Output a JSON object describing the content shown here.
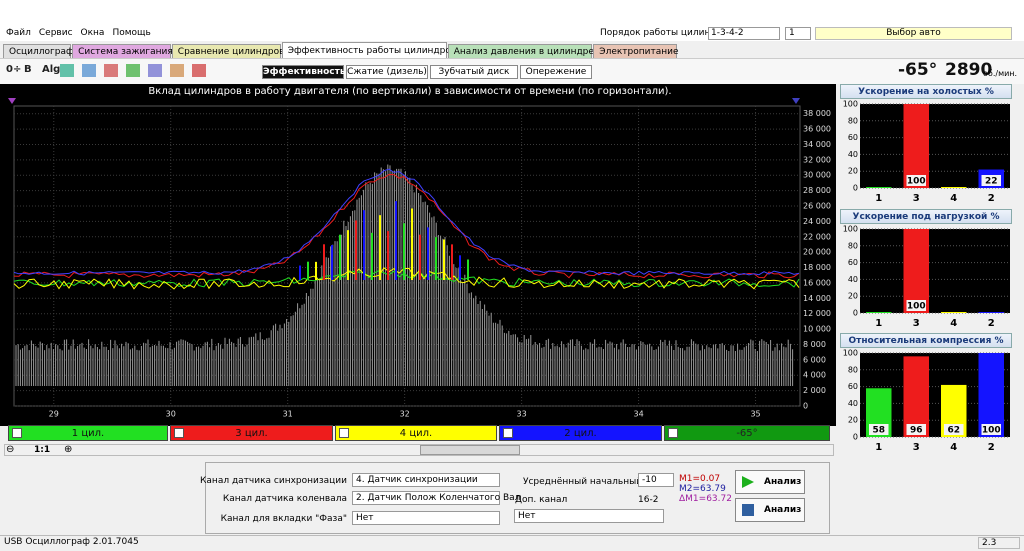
{
  "menu": [
    "Файл",
    "Сервис",
    "Окна",
    "Помощь"
  ],
  "cylinder_order": {
    "label": "Порядок работы цилиндров",
    "value": "1-3-4-2",
    "spin": "1"
  },
  "auto_select": "Выбор авто",
  "tabs": [
    "Осциллограф",
    "Система зажигания",
    "Сравнение цилиндров",
    "Эффективность работы цилиндров",
    "Анализ давления в цилиндре",
    "Электропитание"
  ],
  "toolbar": [
    "0÷",
    "B",
    "Alg"
  ],
  "subtabs": [
    "Эффективность",
    "Сжатие (дизель)",
    "Зубчатый диск",
    "Опережение"
  ],
  "readout": {
    "angle": "-65°",
    "rpm": "2890",
    "unit": "об./мин."
  },
  "main_chart": {
    "title": "Вклад цилиндров в работу двигателя (по вертикали) в зависимости от времени (по горизонтали).",
    "xlim": [
      28.66,
      35.38
    ],
    "ylim": [
      0,
      39000
    ],
    "xticks": [
      29,
      30,
      31,
      32,
      33,
      34,
      35
    ],
    "yticks": [
      0,
      {
        "value": 2000,
        "label": "2 000"
      },
      {
        "value": 4000,
        "label": "4 000"
      },
      {
        "value": 6000,
        "label": "6 000"
      },
      {
        "value": 8000,
        "label": "8 000"
      },
      {
        "value": 10000,
        "label": "10 000"
      },
      {
        "value": 12000,
        "label": "12 000"
      },
      {
        "value": 14000,
        "label": "14 000"
      },
      {
        "value": 16000,
        "label": "16 000"
      },
      {
        "value": 18000,
        "label": "18 000"
      },
      {
        "value": 20000,
        "label": "20 000"
      },
      {
        "value": 22000,
        "label": "22 000"
      },
      {
        "value": 24000,
        "label": "24 000"
      },
      {
        "value": 26000,
        "label": "26 000"
      },
      {
        "value": 28000,
        "label": "28 000"
      },
      {
        "value": 30000,
        "label": "30 000"
      },
      {
        "value": 32000,
        "label": "32 000"
      },
      {
        "value": 34000,
        "label": "34 000"
      },
      {
        "value": 36000,
        "label": "36 000"
      },
      {
        "value": 38000,
        "label": "38 000"
      }
    ]
  },
  "channels": [
    {
      "label": "1 цил.",
      "color": "#22e022"
    },
    {
      "label": "3 цил.",
      "color": "#ee1c1c"
    },
    {
      "label": "4 цил.",
      "color": "#ffff00"
    },
    {
      "label": "2 цил.",
      "color": "#1414ff"
    },
    {
      "label": "-65°",
      "color": "#119911"
    }
  ],
  "zoom": "1:1",
  "panels": [
    {
      "title": "Ускорение на холостых %",
      "categories": [
        "1",
        "3",
        "4",
        "2"
      ],
      "values": [
        1,
        100,
        1,
        22
      ],
      "value_labels": [
        null,
        "100",
        null,
        "22"
      ],
      "colors": [
        "#22e022",
        "#ee1c1c",
        "#ffff00",
        "#1414ff"
      ],
      "ylim": [
        0,
        100
      ],
      "yticks": [
        0,
        20,
        40,
        60,
        80,
        100
      ]
    },
    {
      "title": "Ускорение под нагрузкой %",
      "categories": [
        "1",
        "3",
        "4",
        "2"
      ],
      "values": [
        0,
        100,
        0,
        0
      ],
      "value_labels": [
        null,
        "100",
        null,
        null
      ],
      "colors": [
        "#22e022",
        "#ee1c1c",
        "#ffff00",
        "#1414ff"
      ],
      "ylim": [
        0,
        100
      ],
      "yticks": [
        0,
        20,
        40,
        60,
        80,
        100
      ]
    },
    {
      "title": "Относительная компрессия %",
      "categories": [
        "1",
        "3",
        "4",
        "2"
      ],
      "values": [
        58,
        96,
        62,
        100
      ],
      "value_labels": [
        "58",
        "96",
        "62",
        "100"
      ],
      "colors": [
        "#22e022",
        "#ee1c1c",
        "#ffff00",
        "#1414ff"
      ],
      "ylim": [
        0,
        100
      ],
      "yticks": [
        0,
        20,
        40,
        60,
        80,
        100
      ]
    }
  ],
  "controls": {
    "sync_channel": {
      "label": "Канал датчика синхронизации",
      "value": "4. Датчик синхронизации"
    },
    "crank_channel": {
      "label": "Канал датчика коленвала",
      "value": "2. Датчик Полож Коленчатого Вал"
    },
    "phase_channel": {
      "label": "Канал для вкладки \"Фаза\"",
      "value": "Нет"
    },
    "uoz": {
      "label": "Усреднённый начальный УОЗ",
      "value": "-10"
    },
    "extra_channel": {
      "label": "Доп. канал",
      "note": "16-2",
      "value": "Нет"
    },
    "markers": [
      "M1=0.07",
      "M2=63.79",
      "ΔM1=63.72"
    ],
    "buttons": [
      "Анализ",
      "Анализ"
    ]
  },
  "status": [
    "USB Осциллограф  2.01.7045",
    "2.3"
  ]
}
